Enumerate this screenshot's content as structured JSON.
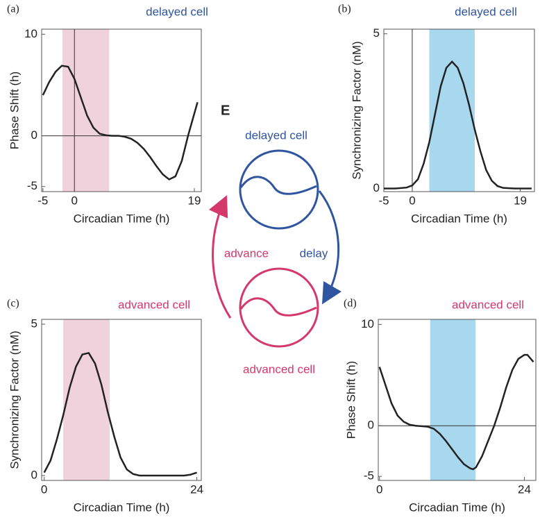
{
  "chart_data": [
    {
      "type": "line",
      "label": "(a)",
      "annotation": "delayed cell",
      "annotation_color": "#2f55a0",
      "x_label": "Circadian Time (h)",
      "y_label": "Phase Shift (h)",
      "xlim": [
        -5.2,
        20.1
      ],
      "ylim": [
        -5.5,
        10.5
      ],
      "xticks": [
        -5,
        0,
        19
      ],
      "yticks": [
        -5,
        0,
        10
      ],
      "shade": [
        -1.9,
        5.5
      ],
      "shade_color": "#f0d2dc",
      "vline": 0,
      "hline": 0,
      "color": "#222",
      "x": [
        -5,
        -4,
        -3,
        -2,
        -1,
        0,
        1,
        2,
        3,
        4,
        5,
        6,
        7,
        8,
        9,
        10,
        11,
        12,
        13,
        14,
        15,
        16,
        17,
        18,
        19,
        19.5
      ],
      "values": [
        4,
        5.3,
        6.3,
        6.9,
        6.8,
        5.6,
        3.8,
        2.0,
        0.8,
        0.2,
        0.05,
        0,
        0,
        -0.1,
        -0.3,
        -0.7,
        -1.3,
        -2.1,
        -3.0,
        -3.8,
        -4.3,
        -4.0,
        -2.5,
        0,
        2.2,
        3.3
      ]
    },
    {
      "type": "line",
      "label": "(b)",
      "annotation": "delayed cell",
      "annotation_color": "#2f55a0",
      "x_label": "Circadian Time (h)",
      "y_label": "Synchronizing Factor (nM)",
      "xlim": [
        -5,
        21.5
      ],
      "ylim": [
        -0.1,
        5.15
      ],
      "xticks": [
        -5,
        0,
        19
      ],
      "yticks": [
        0,
        5
      ],
      "shade": [
        3,
        11
      ],
      "shade_color": "#a8d8ee",
      "vline": 0,
      "color": "#222",
      "x": [
        -5,
        -3,
        -1,
        0,
        1,
        2,
        3,
        4,
        5,
        6,
        7,
        8,
        9,
        10,
        11,
        12,
        13,
        14,
        15,
        16,
        18,
        21
      ],
      "values": [
        0,
        0,
        0.03,
        0.1,
        0.3,
        0.8,
        1.5,
        2.4,
        3.3,
        3.9,
        4.1,
        3.9,
        3.4,
        2.7,
        1.9,
        1.2,
        0.6,
        0.25,
        0.08,
        0.02,
        0,
        0
      ]
    },
    {
      "type": "line",
      "label": "(c)",
      "annotation": "advanced cell",
      "annotation_color": "#d5386a",
      "x_label": "Circadian Time (h)",
      "y_label": "Synchronizing Factor (nM)",
      "xlim": [
        -0.4,
        24.7
      ],
      "ylim": [
        -0.16,
        5.16
      ],
      "xticks": [
        0,
        24
      ],
      "yticks": [
        0,
        5
      ],
      "shade": [
        3,
        10.3
      ],
      "shade_color": "#f0d2dc",
      "color": "#222",
      "x": [
        0,
        1,
        2,
        3,
        4,
        5,
        6,
        7,
        8,
        9,
        10,
        11,
        12,
        13,
        14,
        15,
        17,
        20,
        22,
        23,
        24
      ],
      "values": [
        0.1,
        0.5,
        1.2,
        2.0,
        2.9,
        3.6,
        4.0,
        4.05,
        3.7,
        3.0,
        2.1,
        1.3,
        0.6,
        0.2,
        0.05,
        0,
        0,
        0,
        0,
        0.03,
        0.1
      ]
    },
    {
      "type": "line",
      "label": "(d)",
      "annotation": "advanced cell",
      "annotation_color": "#d5386a",
      "x_label": "Circadian Time (h)",
      "y_label": "Phase Shift (h)",
      "xlim": [
        -0.2,
        25.9
      ],
      "ylim": [
        -5.4,
        10.5
      ],
      "xticks": [
        0,
        24
      ],
      "yticks": [
        -5,
        0,
        10
      ],
      "shade": [
        8.4,
        15.9
      ],
      "shade_color": "#a8d8ee",
      "hline": 0,
      "color": "#222",
      "x": [
        0,
        1,
        2,
        3,
        4,
        5,
        6,
        7,
        8,
        9,
        10,
        11,
        12,
        13,
        14,
        15,
        15.5,
        16,
        17,
        18,
        19,
        20,
        21,
        22,
        23,
        24,
        24.5,
        25.5
      ],
      "values": [
        5.8,
        4.0,
        2.2,
        1.0,
        0.4,
        0.1,
        0,
        -0.05,
        -0.1,
        -0.3,
        -0.8,
        -1.5,
        -2.3,
        -3.1,
        -3.8,
        -4.2,
        -4.3,
        -4.1,
        -3.0,
        -1.5,
        0,
        1.8,
        3.8,
        5.5,
        6.6,
        7.0,
        7.0,
        6.3
      ]
    }
  ],
  "diagram": {
    "label": "E",
    "nodes": [
      {
        "label": "delayed cell"
      },
      {
        "label": "advanced cell"
      }
    ],
    "edges": [
      {
        "label": "delay"
      },
      {
        "label": "advance"
      }
    ]
  }
}
